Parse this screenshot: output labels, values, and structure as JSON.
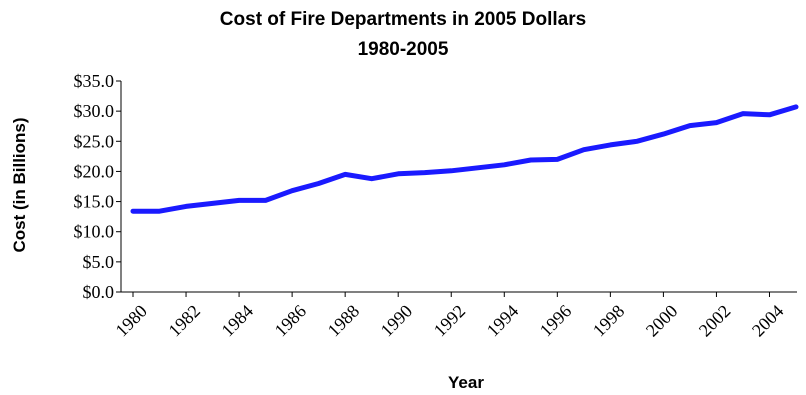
{
  "chart_data": {
    "type": "line",
    "title": "Cost of Fire Departments in 2005 Dollars",
    "subtitle": "1980-2005",
    "xlabel": "Year",
    "ylabel": "Cost (in Billions)",
    "x": [
      1980,
      1981,
      1982,
      1983,
      1984,
      1985,
      1986,
      1987,
      1988,
      1989,
      1990,
      1991,
      1992,
      1993,
      1994,
      1995,
      1996,
      1997,
      1998,
      1999,
      2000,
      2001,
      2002,
      2003,
      2004,
      2005
    ],
    "x_tick_labels": [
      "1980",
      "1982",
      "1984",
      "1986",
      "1988",
      "1990",
      "1992",
      "1994",
      "1996",
      "1998",
      "2000",
      "2002",
      "2004"
    ],
    "series": [
      {
        "values": [
          13.4,
          13.4,
          14.2,
          14.7,
          15.2,
          15.2,
          16.8,
          18.0,
          19.5,
          18.8,
          19.6,
          19.8,
          20.1,
          20.6,
          21.1,
          21.9,
          22.0,
          23.6,
          24.4,
          25.0,
          26.2,
          27.6,
          28.1,
          29.6,
          29.4,
          30.7
        ],
        "color": "#1a1aff"
      }
    ],
    "ylim": [
      0,
      35
    ],
    "y_ticks": [
      0,
      5,
      10,
      15,
      20,
      25,
      30,
      35
    ],
    "y_tick_labels": [
      "$0.0",
      "$5.0",
      "$10.0",
      "$15.0",
      "$20.0",
      "$25.0",
      "$30.0",
      "$35.0"
    ],
    "grid": false,
    "legend": "none"
  }
}
